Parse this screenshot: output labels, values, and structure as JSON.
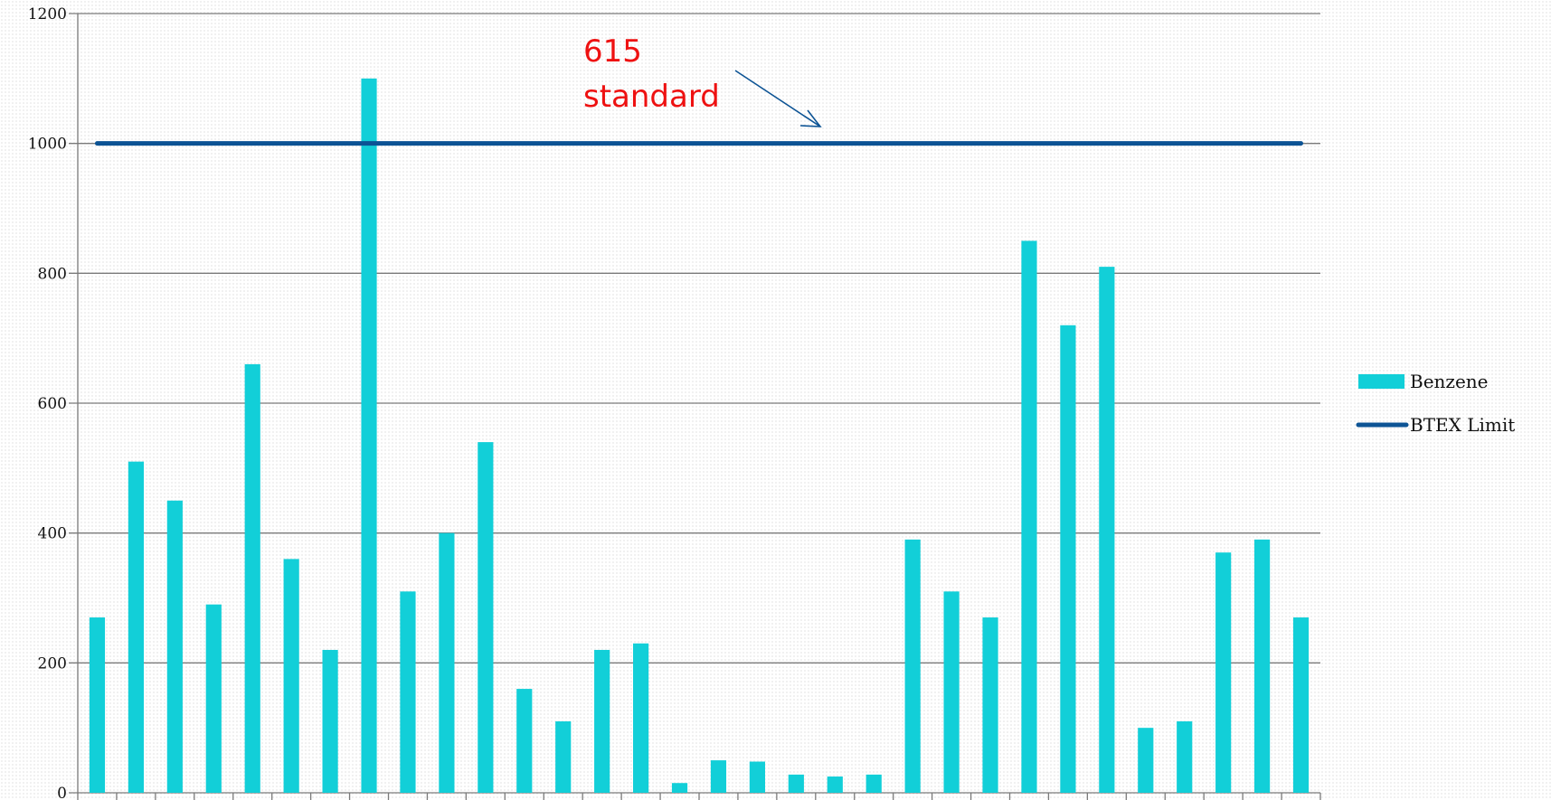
{
  "chart_data": {
    "type": "bar",
    "title": "",
    "xlabel": "",
    "ylabel": "",
    "ylim": [
      0,
      1200
    ],
    "yticks": [
      0,
      200,
      400,
      600,
      800,
      1000,
      1200
    ],
    "grid": true,
    "legend_position": "right",
    "series": [
      {
        "name": "Benzene",
        "type": "bar",
        "color": "#12cfd8",
        "values": [
          270,
          510,
          450,
          290,
          660,
          360,
          220,
          1100,
          310,
          400,
          540,
          160,
          110,
          220,
          230,
          15,
          50,
          48,
          28,
          25,
          28,
          390,
          310,
          270,
          850,
          720,
          810,
          100,
          110,
          370,
          390,
          270
        ]
      },
      {
        "name": "BTEX Limit",
        "type": "line",
        "color": "#0c5394",
        "value": 1000
      }
    ],
    "annotation": {
      "lines": [
        "615",
        "standard"
      ],
      "color": "#ee1111"
    }
  }
}
